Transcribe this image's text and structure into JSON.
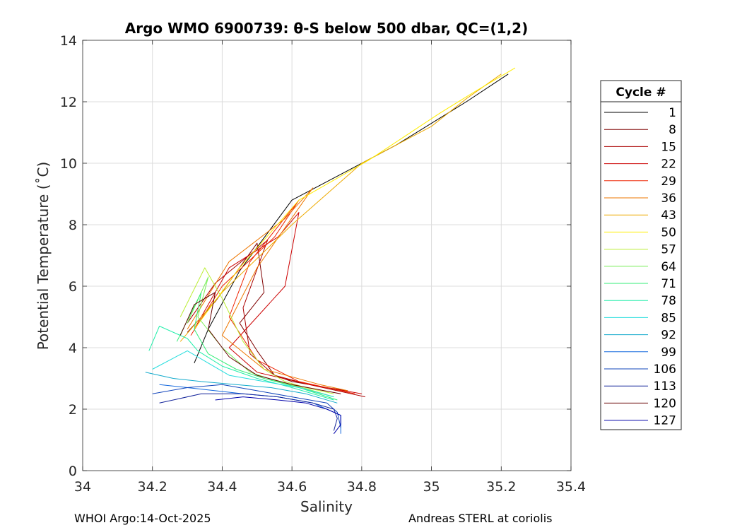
{
  "chart_data": {
    "type": "line",
    "title": "Argo WMO 6900739: θ-S below 500 dbar,  QC=(1,2)",
    "xlabel": "Salinity",
    "ylabel": "Potential Temperature (˚C)",
    "xlim": [
      34,
      35.4
    ],
    "ylim": [
      0,
      14
    ],
    "xticks": [
      34,
      34.2,
      34.4,
      34.6,
      34.8,
      35,
      35.2,
      35.4
    ],
    "xtick_labels": [
      "34",
      "34.2",
      "34.4",
      "34.6",
      "34.8",
      "35",
      "35.2",
      "35.4"
    ],
    "yticks": [
      0,
      2,
      4,
      6,
      8,
      10,
      12,
      14
    ],
    "ytick_labels": [
      "0",
      "2",
      "4",
      "6",
      "8",
      "10",
      "12",
      "14"
    ],
    "grid": true,
    "legend_title": "Cycle #",
    "legend_position": "right",
    "legend": [
      {
        "label": "1",
        "color": "#000000"
      },
      {
        "label": "8",
        "color": "#7f0000"
      },
      {
        "label": "15",
        "color": "#aa0000"
      },
      {
        "label": "22",
        "color": "#cc0000"
      },
      {
        "label": "29",
        "color": "#ee2200"
      },
      {
        "label": "36",
        "color": "#ee7700"
      },
      {
        "label": "43",
        "color": "#eeaa00"
      },
      {
        "label": "50",
        "color": "#ffee00"
      },
      {
        "label": "57",
        "color": "#bbee33"
      },
      {
        "label": "64",
        "color": "#77ee55"
      },
      {
        "label": "71",
        "color": "#33ee77"
      },
      {
        "label": "78",
        "color": "#22eeaa"
      },
      {
        "label": "85",
        "color": "#22dddd"
      },
      {
        "label": "92",
        "color": "#11aacc"
      },
      {
        "label": "99",
        "color": "#1166dd"
      },
      {
        "label": "106",
        "color": "#1144bb"
      },
      {
        "label": "113",
        "color": "#112299"
      },
      {
        "label": "120",
        "color": "#660000"
      },
      {
        "label": "127",
        "color": "#0000aa"
      }
    ],
    "series": [
      {
        "name": "1",
        "color": "#000000",
        "s": [
          34.32,
          34.36,
          34.45,
          34.6,
          34.8,
          34.9,
          35.0,
          35.1,
          35.22
        ],
        "t": [
          3.5,
          4.6,
          6.5,
          8.8,
          10.0,
          10.6,
          11.3,
          12.0,
          12.9
        ]
      },
      {
        "name": "8",
        "color": "#7f0000",
        "s": [
          34.3,
          34.38,
          34.5,
          34.52,
          34.45,
          34.5,
          34.55,
          34.6,
          34.7,
          34.76
        ],
        "t": [
          4.5,
          5.5,
          7.4,
          5.8,
          4.8,
          3.9,
          3.1,
          2.9,
          2.7,
          2.6
        ]
      },
      {
        "name": "15",
        "color": "#aa0000",
        "s": [
          34.3,
          34.38,
          34.53,
          34.46,
          34.48,
          34.55,
          34.65,
          34.81
        ],
        "t": [
          4.8,
          6.1,
          7.5,
          5.3,
          3.8,
          3.1,
          2.8,
          2.4
        ]
      },
      {
        "name": "22",
        "color": "#cc0000",
        "s": [
          34.32,
          34.42,
          34.56,
          34.62,
          34.58,
          34.5,
          34.42,
          34.5,
          34.65,
          34.8
        ],
        "t": [
          4.6,
          6.6,
          7.6,
          8.4,
          6.0,
          5.0,
          4.0,
          3.2,
          2.8,
          2.5
        ]
      },
      {
        "name": "29",
        "color": "#ee2200",
        "s": [
          34.31,
          34.4,
          34.55,
          34.62,
          34.48,
          34.42,
          34.5,
          34.62,
          34.78
        ],
        "t": [
          4.4,
          6.0,
          7.6,
          8.8,
          6.8,
          5.0,
          3.6,
          2.9,
          2.5
        ]
      },
      {
        "name": "36",
        "color": "#ee7700",
        "s": [
          34.3,
          34.42,
          34.58,
          34.66,
          34.5,
          34.4,
          34.52,
          34.68,
          34.76
        ],
        "t": [
          4.6,
          6.8,
          8.2,
          9.2,
          6.6,
          4.4,
          3.3,
          2.8,
          2.6
        ]
      },
      {
        "name": "43",
        "color": "#eeaa00",
        "s": [
          34.28,
          34.4,
          34.6,
          34.8,
          35.0,
          35.1,
          35.2
        ],
        "t": [
          4.2,
          5.8,
          8.0,
          10.0,
          11.2,
          12.1,
          12.9
        ]
      },
      {
        "name": "50",
        "color": "#ffee00",
        "s": [
          34.32,
          34.45,
          34.62,
          34.82,
          35.02,
          35.12,
          35.24
        ],
        "t": [
          4.6,
          6.6,
          8.8,
          10.1,
          11.6,
          12.3,
          13.1
        ]
      },
      {
        "name": "57",
        "color": "#bbee33",
        "s": [
          34.28,
          34.35,
          34.4,
          34.46,
          34.52,
          34.58,
          34.64,
          34.72
        ],
        "t": [
          5.0,
          6.6,
          5.6,
          4.2,
          3.3,
          2.9,
          2.7,
          2.5
        ]
      },
      {
        "name": "64",
        "color": "#77ee55",
        "s": [
          34.3,
          34.36,
          34.33,
          34.4,
          34.48,
          34.56,
          34.63,
          34.72
        ],
        "t": [
          4.8,
          6.3,
          5.0,
          4.0,
          3.2,
          2.9,
          2.7,
          2.4
        ]
      },
      {
        "name": "71",
        "color": "#33ee77",
        "s": [
          34.27,
          34.34,
          34.32,
          34.36,
          34.44,
          34.52,
          34.62,
          34.73
        ],
        "t": [
          4.2,
          5.8,
          4.6,
          3.8,
          3.3,
          3.0,
          2.7,
          2.3
        ]
      },
      {
        "name": "78",
        "color": "#22eeaa",
        "s": [
          34.19,
          34.22,
          34.3,
          34.33,
          34.4,
          34.5,
          34.6,
          34.72
        ],
        "t": [
          3.9,
          4.7,
          4.3,
          3.9,
          3.4,
          3.0,
          2.7,
          2.3
        ]
      },
      {
        "name": "85",
        "color": "#22dddd",
        "s": [
          34.2,
          34.3,
          34.36,
          34.42,
          34.52,
          34.62,
          34.72
        ],
        "t": [
          3.3,
          3.9,
          3.5,
          3.1,
          2.9,
          2.7,
          2.4
        ]
      },
      {
        "name": "92",
        "color": "#11aacc",
        "s": [
          34.18,
          34.26,
          34.34,
          34.44,
          34.54,
          34.64,
          34.73
        ],
        "t": [
          3.2,
          3.0,
          2.9,
          2.8,
          2.7,
          2.5,
          2.2
        ]
      },
      {
        "name": "99",
        "color": "#1166dd",
        "s": [
          34.22,
          34.3,
          34.38,
          34.46,
          34.56,
          34.66,
          34.74,
          34.74
        ],
        "t": [
          2.8,
          2.7,
          2.6,
          2.5,
          2.4,
          2.2,
          1.8,
          1.2
        ]
      },
      {
        "name": "106",
        "color": "#1144bb",
        "s": [
          34.2,
          34.3,
          34.4,
          34.5,
          34.6,
          34.7,
          34.73,
          34.74
        ],
        "t": [
          2.5,
          2.7,
          2.8,
          2.6,
          2.4,
          2.2,
          1.9,
          1.4
        ]
      },
      {
        "name": "113",
        "color": "#112299",
        "s": [
          34.22,
          34.34,
          34.46,
          34.56,
          34.66,
          34.72,
          34.73,
          34.72
        ],
        "t": [
          2.2,
          2.5,
          2.5,
          2.4,
          2.2,
          2.0,
          1.7,
          1.3
        ]
      },
      {
        "name": "120",
        "color": "#660000",
        "s": [
          34.28,
          34.32,
          34.38,
          34.36,
          34.42,
          34.5,
          34.6,
          34.74
        ],
        "t": [
          4.4,
          5.4,
          5.8,
          4.6,
          3.7,
          3.1,
          2.8,
          2.5
        ]
      },
      {
        "name": "127",
        "color": "#0000aa",
        "s": [
          34.38,
          34.46,
          34.56,
          34.64,
          34.7,
          34.74,
          34.74,
          34.72
        ],
        "t": [
          2.3,
          2.4,
          2.3,
          2.2,
          2.0,
          1.8,
          1.5,
          1.2
        ]
      }
    ]
  },
  "footer": {
    "left": "WHOI Argo:14-Oct-2025",
    "right": "Andreas STERL at coriolis"
  }
}
